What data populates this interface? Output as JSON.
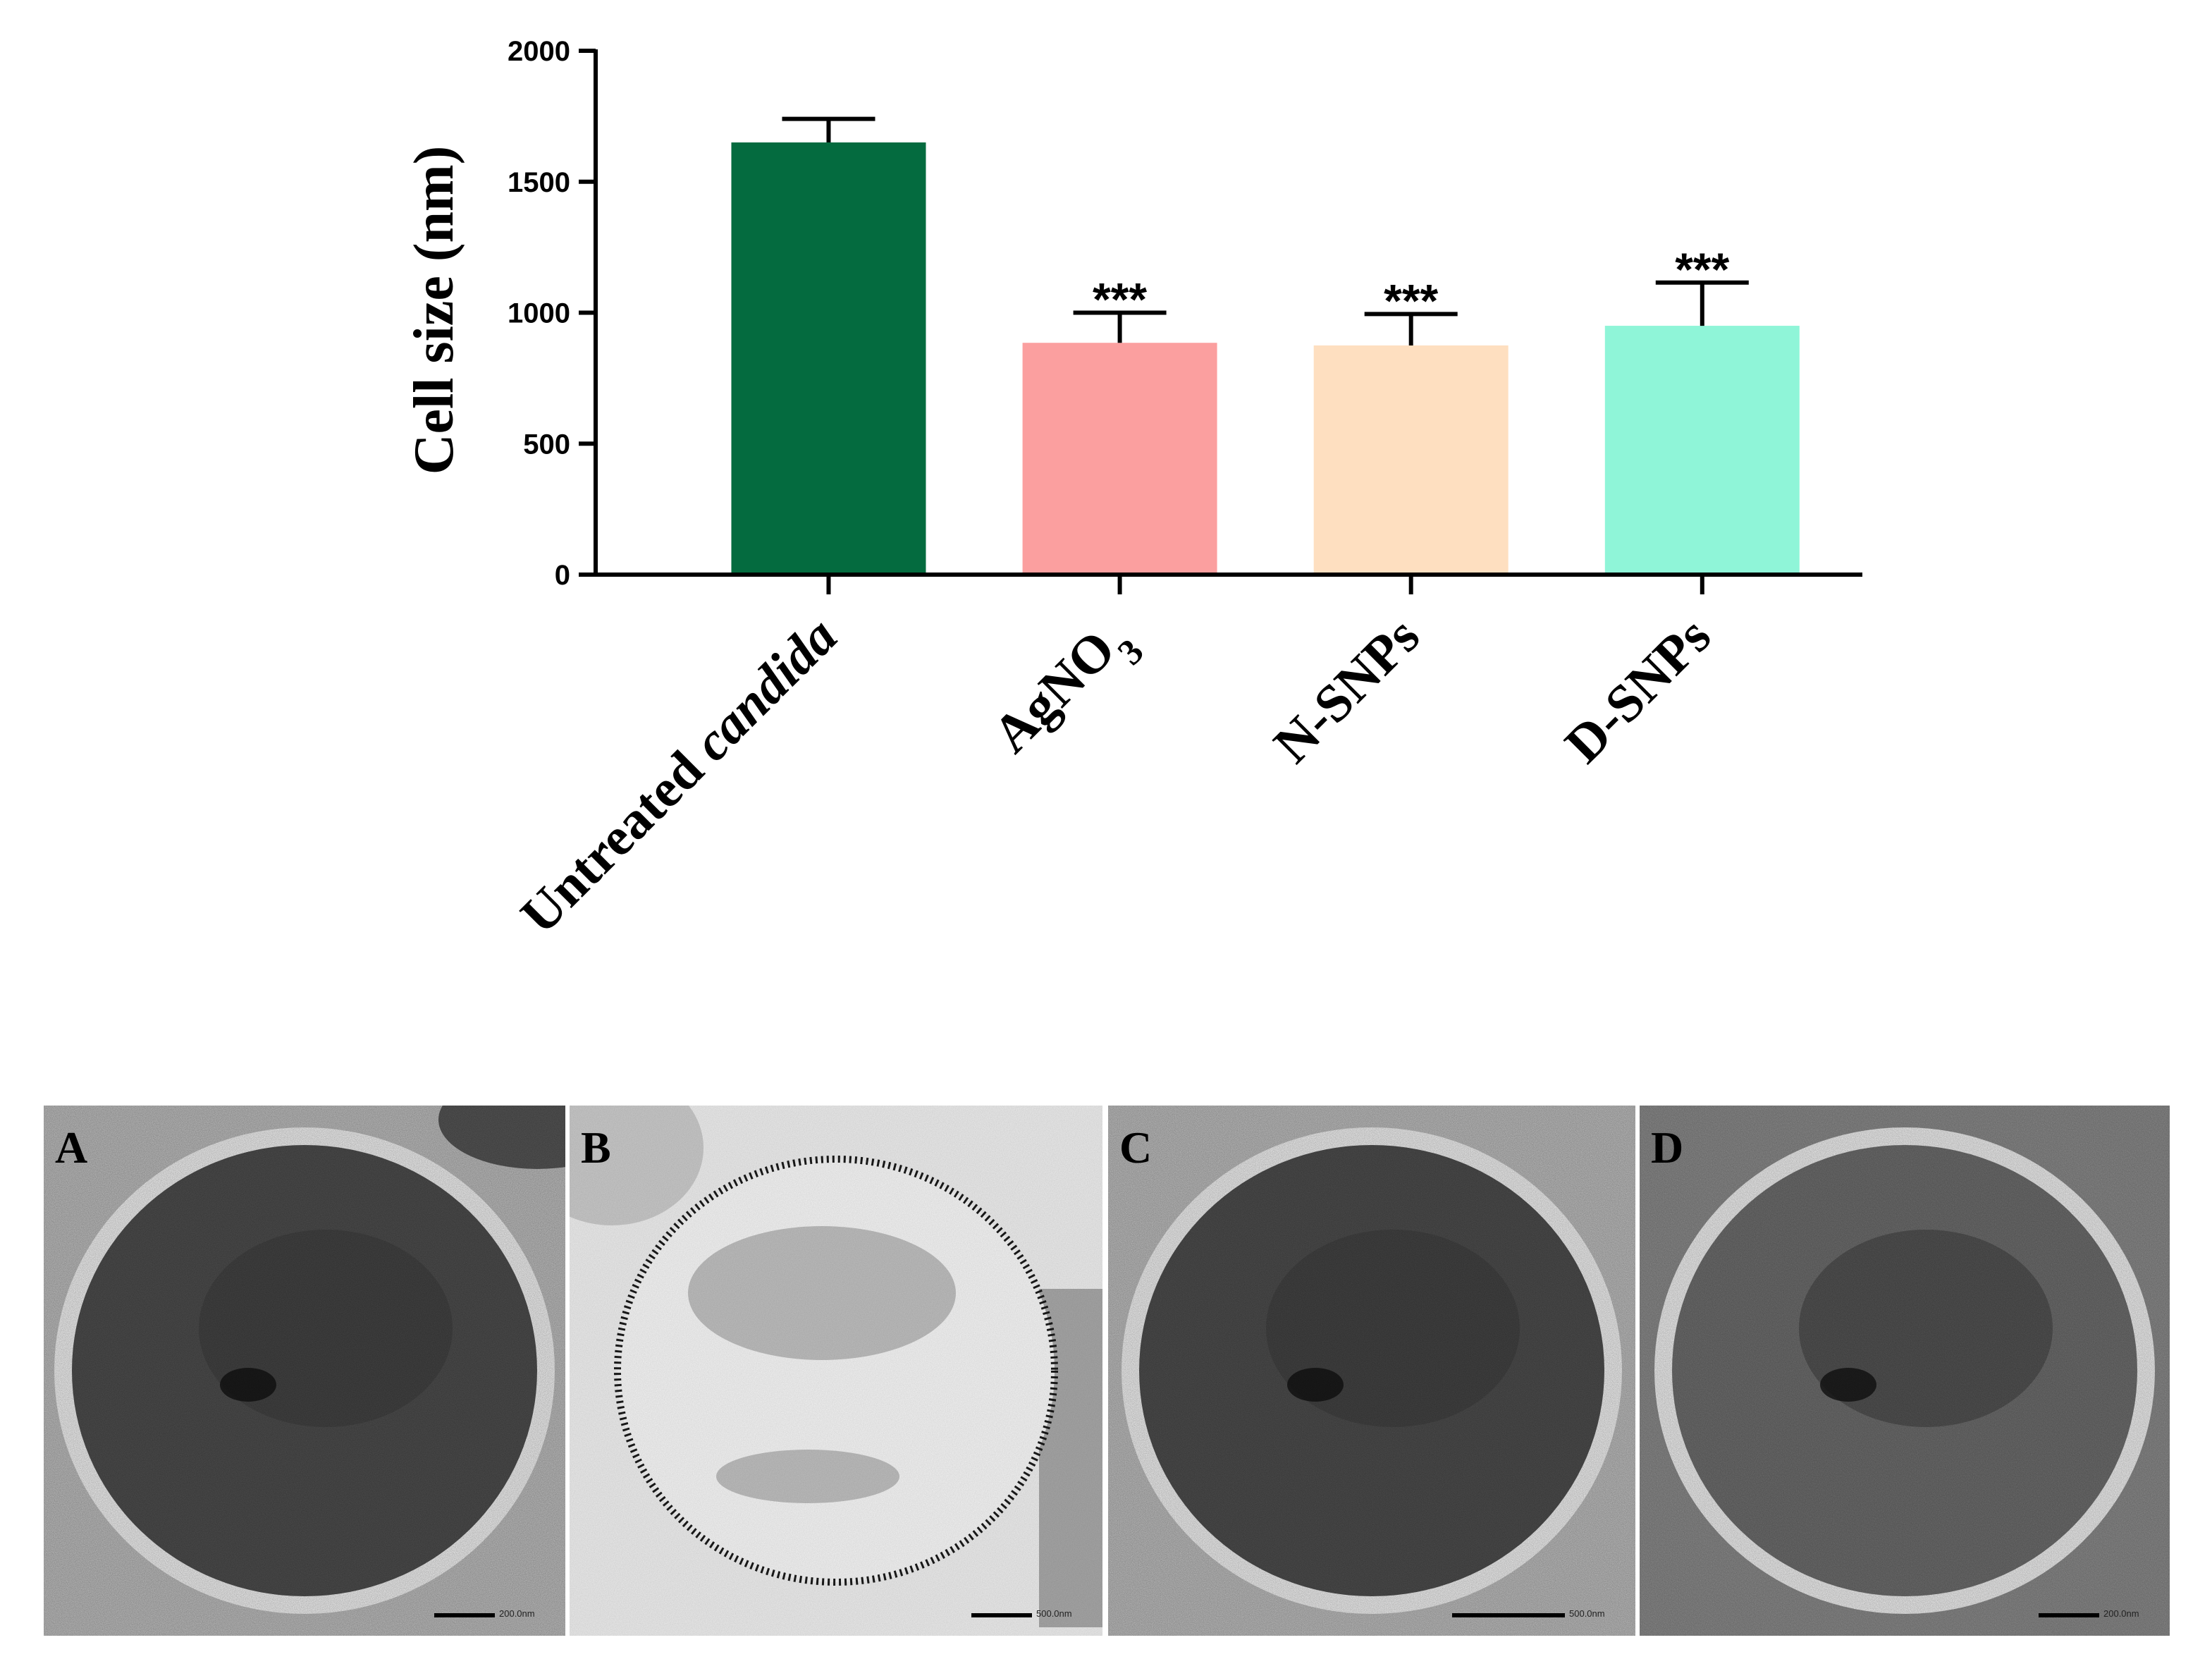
{
  "chart_data": {
    "type": "bar",
    "title": "",
    "xlabel": "",
    "ylabel": "Cell size (nm)",
    "ylim": [
      0,
      2000
    ],
    "yticks": [
      0,
      500,
      1000,
      1500,
      2000
    ],
    "ytick_labels": [
      "0",
      "500",
      "1000",
      "1500",
      "2000"
    ],
    "categories": [
      {
        "label": "Untreated ",
        "italic_suffix": "candida",
        "sub": "",
        "suffix": ""
      },
      {
        "label": "AgNO",
        "italic_suffix": "",
        "sub": "3",
        "suffix": ""
      },
      {
        "label": "N-SNPs",
        "italic_suffix": "",
        "sub": "",
        "suffix": ""
      },
      {
        "label": "D-SNPs",
        "italic_suffix": "",
        "sub": "",
        "suffix": ""
      }
    ],
    "values": [
      1650,
      885,
      875,
      950
    ],
    "errors": [
      90,
      115,
      120,
      165
    ],
    "significance": [
      "",
      "***",
      "***",
      "***"
    ],
    "colors": [
      "#046b3f",
      "#fb9f9f",
      "#fedfc0",
      "#8ff5d8"
    ],
    "grid": false,
    "legend": "none"
  },
  "micrographs": [
    {
      "letter": "A",
      "scale_text": "200.0nm",
      "appearance": "dark-cell"
    },
    {
      "letter": "B",
      "scale_text": "500.0nm",
      "appearance": "light-cell-dotted-wall"
    },
    {
      "letter": "C",
      "scale_text": "500.0nm",
      "appearance": "dark-cell"
    },
    {
      "letter": "D",
      "scale_text": "200.0nm",
      "appearance": "medium-cell"
    }
  ]
}
